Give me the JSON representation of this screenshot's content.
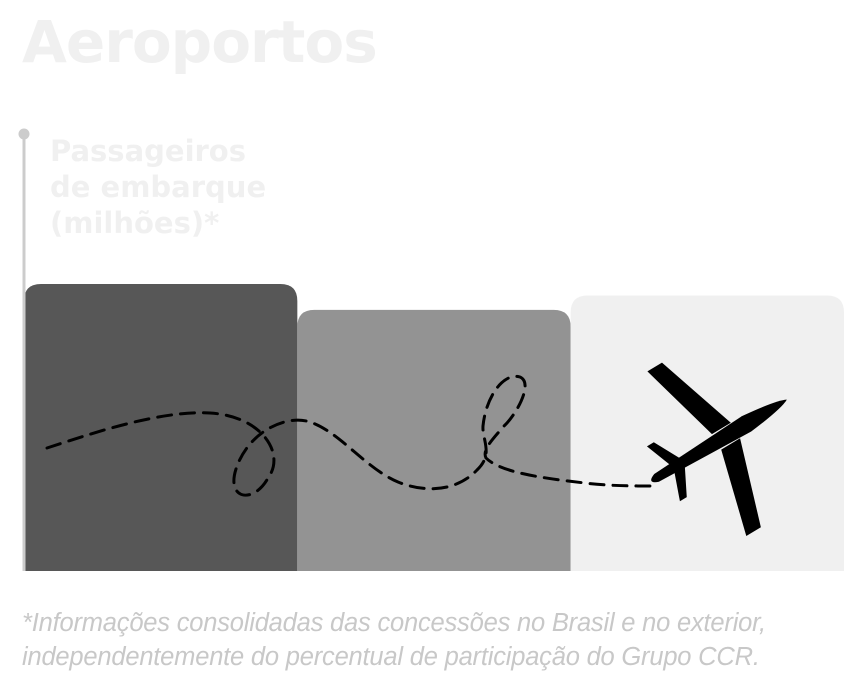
{
  "title": "Aeroportos",
  "ylabel": {
    "lines": [
      "Passageiros",
      "de embarque",
      "(milhões)*"
    ]
  },
  "footnote": {
    "lines": [
      "*Informações consolidadas das concessões no Brasil e no exterior,",
      "independentemente do percentual de participação do Grupo CCR."
    ]
  },
  "icons": {
    "decoration": "airplane-icon",
    "flight_path": "dashed-flight-path"
  },
  "colors": {
    "title_text": "#f0f0f0",
    "axis_line": "#cccccc",
    "footnote_text": "#c8c8c8"
  },
  "chart_data": {
    "type": "bar",
    "title": "Aeroportos",
    "ylabel": "Passageiros de embarque (milhões)*",
    "xlabel": "",
    "categories": [
      "",
      "",
      ""
    ],
    "values": [
      100,
      91,
      96
    ],
    "value_scale": "relative height, no axis ticks or data labels shown",
    "ylim": [
      0,
      100
    ],
    "bar_colors": [
      "#575757",
      "#939393",
      "#f0f0f0"
    ],
    "grid": false,
    "legend": "none"
  }
}
